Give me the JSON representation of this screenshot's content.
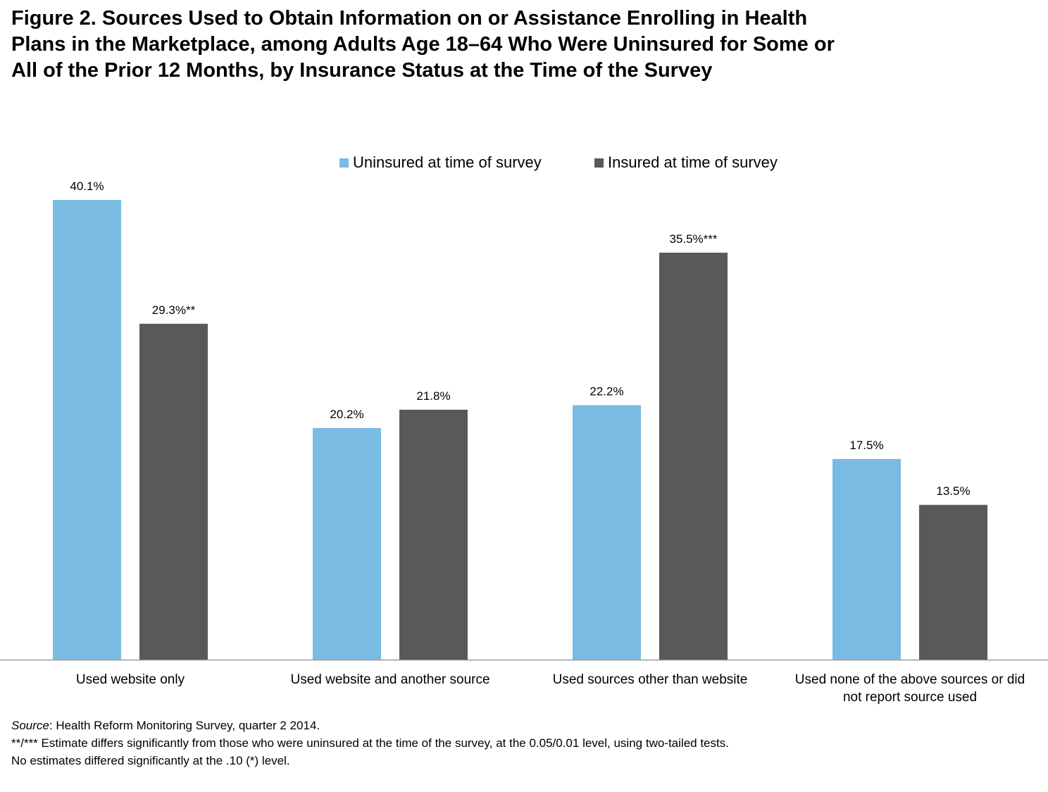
{
  "title": "Figure 2. Sources Used to Obtain Information on or Assistance Enrolling in Health Plans in the Marketplace, among Adults Age 18–64 Who Were Uninsured for Some or All of the Prior 12 Months, by Insurance Status at the Time of the Survey",
  "colors": {
    "uninsured": "#7abbe4",
    "insured": "#595959",
    "axis": "#999999",
    "text": "#000000"
  },
  "chart_data": {
    "type": "bar",
    "title": "Figure 2. Sources Used to Obtain Information on or Assistance Enrolling in Health Plans in the Marketplace, among Adults Age 18–64 Who Were Uninsured for Some or All of the Prior 12 Months, by Insurance Status at the Time of the Survey",
    "categories": [
      "Used website only",
      "Used website and another source",
      "Used sources other than website",
      "Used none of the above sources or did not report source used"
    ],
    "category_label_lines": [
      [
        "Used website only"
      ],
      [
        "Used website and another source"
      ],
      [
        "Used sources other than website"
      ],
      [
        "Used none of the above sources or did",
        "not report source used"
      ]
    ],
    "series": [
      {
        "name": "Uninsured at time of survey",
        "color": "#7abbe4",
        "values": [
          40.1,
          20.2,
          22.2,
          17.5
        ],
        "labels": [
          "40.1%",
          "20.2%",
          "22.2%",
          "17.5%"
        ]
      },
      {
        "name": "Insured at time of survey",
        "color": "#595959",
        "values": [
          29.3,
          21.8,
          35.5,
          13.5
        ],
        "labels": [
          "29.3%**",
          "21.8%",
          "35.5%***",
          "13.5%"
        ]
      }
    ],
    "xlabel": "",
    "ylabel": "",
    "ylim": [
      0,
      40.1
    ],
    "grid": false,
    "legend": "top-center"
  },
  "footnotes": {
    "source_label": "Source",
    "source_text": ": Health Reform Monitoring Survey, quarter 2 2014.",
    "significance": "**/*** Estimate differs significantly from those who were uninsured at the time of the survey, at the 0.05/0.01 level, using two-tailed tests.",
    "no_significance": "No estimates differed significantly at the .10 (*) level."
  }
}
